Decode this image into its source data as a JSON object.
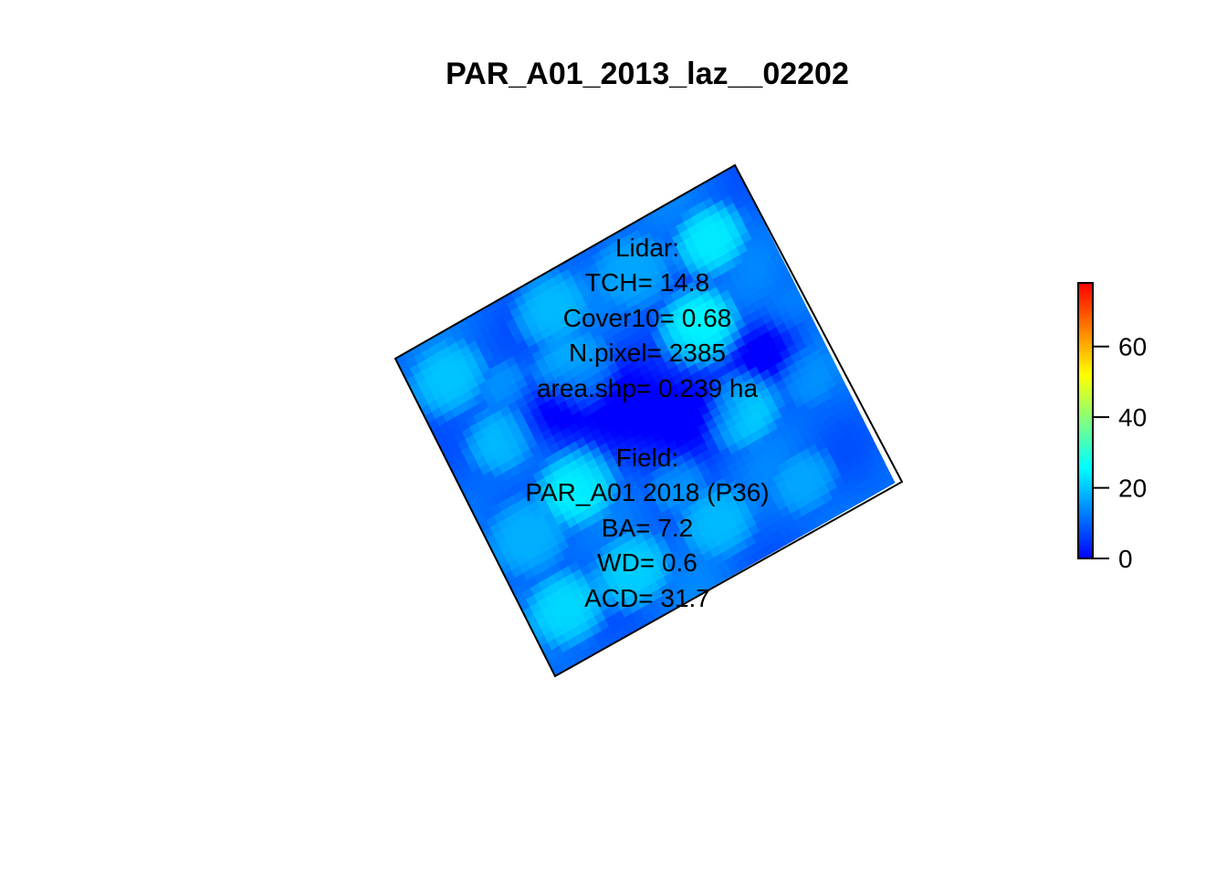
{
  "chart_data": {
    "type": "heatmap",
    "title": "PAR_A01_2013_laz__02202",
    "annotations": {
      "lidar": [
        "Lidar:",
        "TCH= 14.8",
        "Cover10= 0.68",
        "N.pixel= 2385",
        "area.shp= 0.239 ha"
      ],
      "field": [
        "Field:",
        "PAR_A01 2018 (P36)",
        "BA= 7.2",
        "WD= 0.6",
        "ACD= 31.7"
      ]
    },
    "legend": {
      "range": [
        0,
        78
      ],
      "ticks": [
        0,
        20,
        40,
        60
      ],
      "tick_labels": [
        "0",
        "20",
        "40",
        "60"
      ],
      "colors": [
        "#0000FF",
        "#007FFF",
        "#00FFFF",
        "#7FFF7F",
        "#FFFF00",
        "#FF7F00",
        "#FF0000"
      ],
      "placement": "right"
    },
    "plot_corners_description": "rotated square plot boundary",
    "canopy_height_min": 0,
    "canopy_height_max": 30,
    "grid": false
  }
}
